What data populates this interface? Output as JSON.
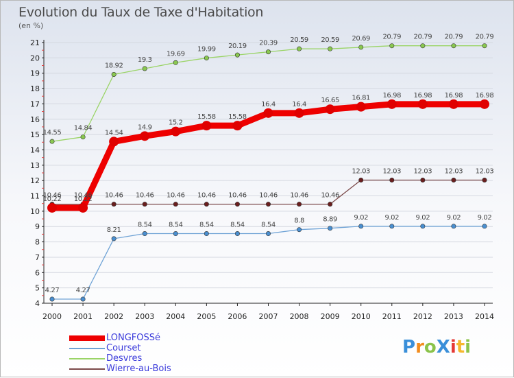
{
  "title": "Evolution du Taux de Taxe d'Habitation",
  "subtitle": "(en %)",
  "logo": {
    "text": "ProXiti",
    "colors": [
      "#3a8fd9",
      "#f28c1d",
      "#8bc34a",
      "#3a8fd9",
      "#e53935",
      "#f5b82e",
      "#8bc34a"
    ]
  },
  "chart_data": {
    "type": "line",
    "x": [
      "2000",
      "2001",
      "2002",
      "2003",
      "2004",
      "2005",
      "2006",
      "2007",
      "2008",
      "2009",
      "2010",
      "2011",
      "2012",
      "2013",
      "2014"
    ],
    "ylim": [
      4,
      21
    ],
    "yticks": [
      4,
      5,
      6,
      7,
      8,
      9,
      10,
      11,
      12,
      13,
      14,
      15,
      16,
      17,
      18,
      19,
      20,
      21
    ],
    "legend_position": "bottom-left",
    "series": [
      {
        "name": "LONGFOSSé",
        "color": "#ee0000",
        "thick": true,
        "values": [
          10.22,
          10.22,
          14.54,
          14.9,
          15.2,
          15.58,
          15.58,
          16.4,
          16.4,
          16.65,
          16.81,
          16.98,
          16.98,
          16.98,
          16.98
        ],
        "labels": [
          "10.22",
          "10.22",
          "14.54",
          "14.9",
          "15.2",
          "15.58",
          "15.58",
          "16.4",
          "16.4",
          "16.65",
          "16.81",
          "16.98",
          "16.98",
          "16.98",
          "16.98"
        ]
      },
      {
        "name": "Courset",
        "color": "#6fa3d6",
        "marker": "#4a8fd0",
        "values": [
          4.27,
          4.27,
          8.21,
          8.54,
          8.54,
          8.54,
          8.54,
          8.54,
          8.8,
          8.89,
          9.02,
          9.02,
          9.02,
          9.02,
          9.02
        ],
        "labels": [
          "4.27",
          "4.27",
          "8.21",
          "8.54",
          "8.54",
          "8.54",
          "8.54",
          "8.54",
          "8.8",
          "8.89",
          "9.02",
          "9.02",
          "9.02",
          "9.02",
          "9.02"
        ]
      },
      {
        "name": "Desvres",
        "color": "#9ad466",
        "marker": "#8ac850",
        "values": [
          14.55,
          14.84,
          18.92,
          19.3,
          19.69,
          19.99,
          20.19,
          20.39,
          20.59,
          20.59,
          20.69,
          20.79,
          20.79,
          20.79,
          20.79
        ],
        "labels": [
          "14.55",
          "14.84",
          "18.92",
          "19.3",
          "19.69",
          "19.99",
          "20.19",
          "20.39",
          "20.59",
          "20.59",
          "20.69",
          "20.79",
          "20.79",
          "20.79",
          "20.79"
        ]
      },
      {
        "name": "Wierre-au-Bois",
        "color": "#7a4848",
        "marker": "#6a1e1e",
        "values": [
          10.46,
          10.46,
          10.46,
          10.46,
          10.46,
          10.46,
          10.46,
          10.46,
          10.46,
          10.46,
          12.03,
          12.03,
          12.03,
          12.03,
          12.03
        ],
        "labels": [
          "10.46",
          "10.46",
          "10.46",
          "10.46",
          "10.46",
          "10.46",
          "10.46",
          "10.46",
          "10.46",
          "10.46",
          "12.03",
          "12.03",
          "12.03",
          "12.03",
          "12.03"
        ]
      }
    ]
  }
}
